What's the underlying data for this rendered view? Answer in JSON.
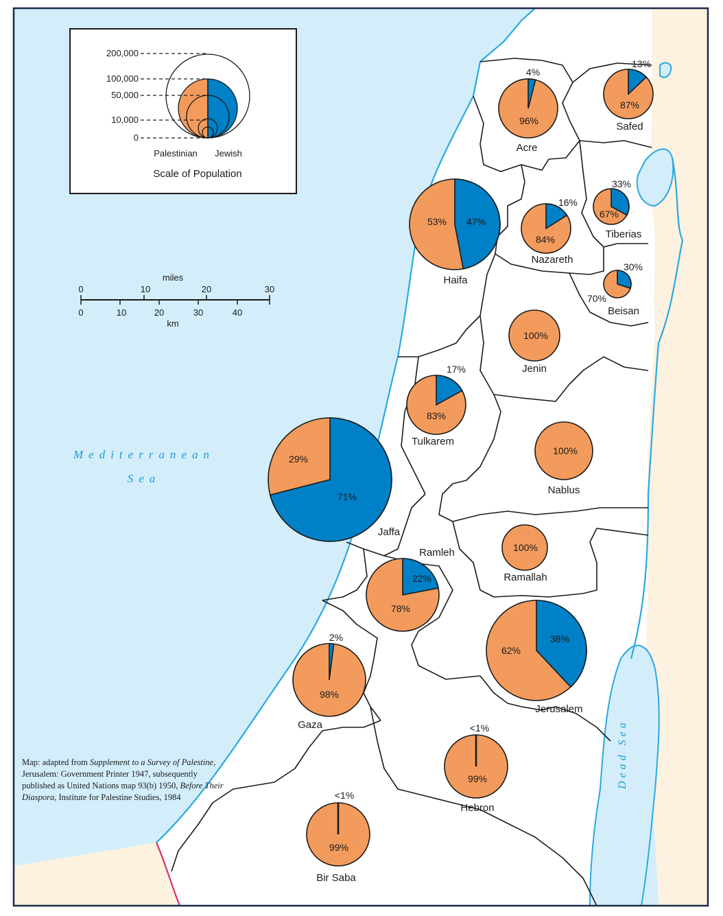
{
  "colors": {
    "sea": "#d3eefa",
    "land_outside": "#fdf1e0",
    "district_fill": "#ffffff",
    "palestinian": "#f39b5c",
    "jewish": "#0080c6",
    "coast": "#29a9e0",
    "frame": "#1a2a4a",
    "border_red": "#d6336c"
  },
  "legend": {
    "title": "Scale of Population",
    "left_label": "Palestinian",
    "right_label": "Jewish",
    "scale": [
      {
        "label": "200,000",
        "value": 200000
      },
      {
        "label": "100,000",
        "value": 100000
      },
      {
        "label": "50,000",
        "value": 50000
      },
      {
        "label": "10,000",
        "value": 10000
      },
      {
        "label": "0",
        "value": 0
      }
    ]
  },
  "scale_bar": {
    "miles_label": "miles",
    "km_label": "km",
    "miles_ticks": [
      "0",
      "10",
      "20",
      "30"
    ],
    "km_ticks": [
      "0",
      "10",
      "20",
      "30",
      "40"
    ]
  },
  "sea_labels": {
    "mediterranean_line1": "Mediterranean",
    "mediterranean_line2": "Sea",
    "dead_sea": "Dead Sea"
  },
  "districts": [
    {
      "name": "Acre",
      "jewish_label": "4%",
      "palestinian_label": "96%",
      "jewish_pct": 4
    },
    {
      "name": "Safed",
      "jewish_label": "13%",
      "palestinian_label": "87%",
      "jewish_pct": 13
    },
    {
      "name": "Haifa",
      "jewish_label": "47%",
      "palestinian_label": "53%",
      "jewish_pct": 47
    },
    {
      "name": "Nazareth",
      "jewish_label": "16%",
      "palestinian_label": "84%",
      "jewish_pct": 16
    },
    {
      "name": "Tiberias",
      "jewish_label": "33%",
      "palestinian_label": "67%",
      "jewish_pct": 33
    },
    {
      "name": "Beisan",
      "jewish_label": "30%",
      "palestinian_label": "70%",
      "jewish_pct": 30
    },
    {
      "name": "Jenin",
      "jewish_label": "",
      "palestinian_label": "100%",
      "jewish_pct": 0
    },
    {
      "name": "Tulkarem",
      "jewish_label": "17%",
      "palestinian_label": "83%",
      "jewish_pct": 17
    },
    {
      "name": "Nablus",
      "jewish_label": "",
      "palestinian_label": "100%",
      "jewish_pct": 0
    },
    {
      "name": "Jaffa",
      "jewish_label": "71%",
      "palestinian_label": "29%",
      "jewish_pct": 71
    },
    {
      "name": "Ramleh",
      "jewish_label": "22%",
      "palestinian_label": "78%",
      "jewish_pct": 22
    },
    {
      "name": "Ramallah",
      "jewish_label": "",
      "palestinian_label": "100%",
      "jewish_pct": 0
    },
    {
      "name": "Gaza",
      "jewish_label": "2%",
      "palestinian_label": "98%",
      "jewish_pct": 2
    },
    {
      "name": "Jerusalem",
      "jewish_label": "38%",
      "palestinian_label": "62%",
      "jewish_pct": 38
    },
    {
      "name": "Hebron",
      "jewish_label": "<1%",
      "palestinian_label": "99%",
      "jewish_pct": 0.5
    },
    {
      "name": "Bir Saba",
      "jewish_label": "<1%",
      "palestinian_label": "99%",
      "jewish_pct": 0.5
    }
  ],
  "credit": {
    "p1": "Map: adapted from ",
    "i1": "Supplement to a Survey of Palestine",
    "p2": ", Jerusalem:  Government Printer 1947, subsequently published as United Nations map 93(b) 1950, ",
    "i2": "Before Their Diaspora",
    "p3": ", Institute for Palestine Studies, 1984"
  }
}
